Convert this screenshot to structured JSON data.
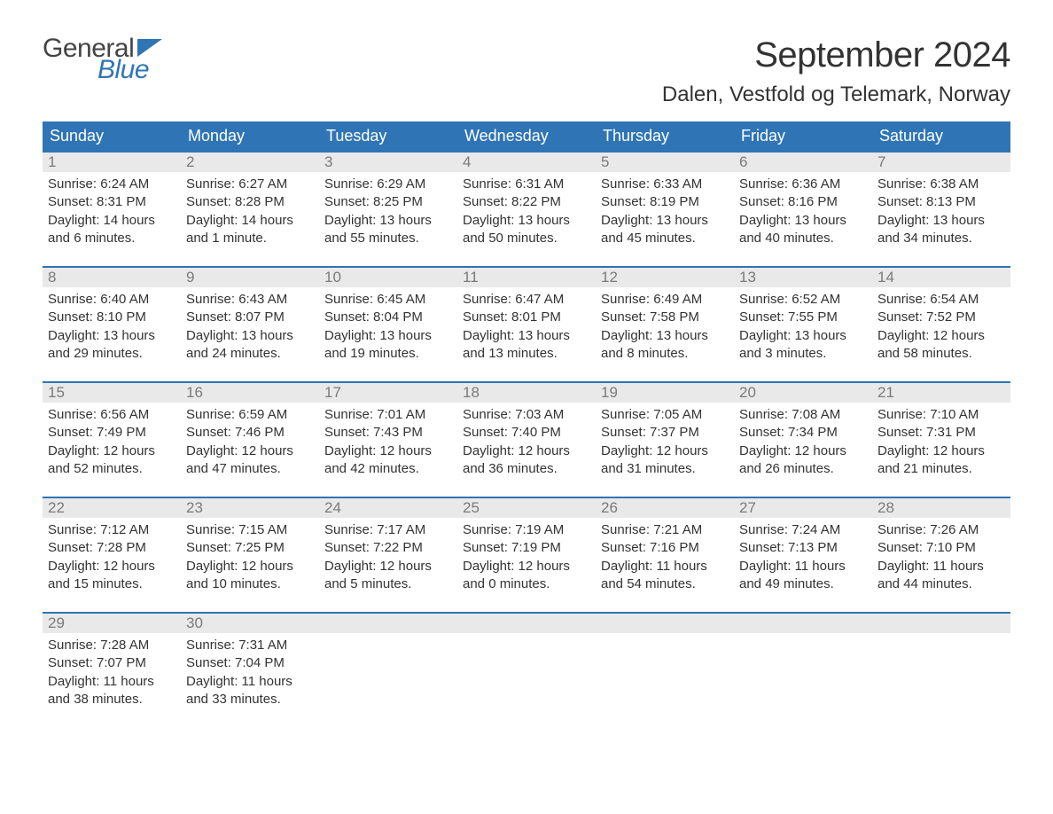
{
  "logo": {
    "text_general": "General",
    "text_blue": "Blue",
    "flag_color": "#2f75b5"
  },
  "title": "September 2024",
  "location": "Dalen, Vestfold og Telemark, Norway",
  "colors": {
    "header_bg": "#2f75b5",
    "header_text": "#ffffff",
    "daynum_bg": "#e9e9e9",
    "daynum_text": "#7a7a7a",
    "body_text": "#333333",
    "background": "#ffffff",
    "week_border": "#2f75b5"
  },
  "typography": {
    "title_fontsize": 40,
    "location_fontsize": 24,
    "dow_fontsize": 18,
    "daynum_fontsize": 17,
    "body_fontsize": 15
  },
  "days_of_week": [
    "Sunday",
    "Monday",
    "Tuesday",
    "Wednesday",
    "Thursday",
    "Friday",
    "Saturday"
  ],
  "weeks": [
    [
      {
        "num": "1",
        "sunrise": "Sunrise: 6:24 AM",
        "sunset": "Sunset: 8:31 PM",
        "daylight": "Daylight: 14 hours and 6 minutes."
      },
      {
        "num": "2",
        "sunrise": "Sunrise: 6:27 AM",
        "sunset": "Sunset: 8:28 PM",
        "daylight": "Daylight: 14 hours and 1 minute."
      },
      {
        "num": "3",
        "sunrise": "Sunrise: 6:29 AM",
        "sunset": "Sunset: 8:25 PM",
        "daylight": "Daylight: 13 hours and 55 minutes."
      },
      {
        "num": "4",
        "sunrise": "Sunrise: 6:31 AM",
        "sunset": "Sunset: 8:22 PM",
        "daylight": "Daylight: 13 hours and 50 minutes."
      },
      {
        "num": "5",
        "sunrise": "Sunrise: 6:33 AM",
        "sunset": "Sunset: 8:19 PM",
        "daylight": "Daylight: 13 hours and 45 minutes."
      },
      {
        "num": "6",
        "sunrise": "Sunrise: 6:36 AM",
        "sunset": "Sunset: 8:16 PM",
        "daylight": "Daylight: 13 hours and 40 minutes."
      },
      {
        "num": "7",
        "sunrise": "Sunrise: 6:38 AM",
        "sunset": "Sunset: 8:13 PM",
        "daylight": "Daylight: 13 hours and 34 minutes."
      }
    ],
    [
      {
        "num": "8",
        "sunrise": "Sunrise: 6:40 AM",
        "sunset": "Sunset: 8:10 PM",
        "daylight": "Daylight: 13 hours and 29 minutes."
      },
      {
        "num": "9",
        "sunrise": "Sunrise: 6:43 AM",
        "sunset": "Sunset: 8:07 PM",
        "daylight": "Daylight: 13 hours and 24 minutes."
      },
      {
        "num": "10",
        "sunrise": "Sunrise: 6:45 AM",
        "sunset": "Sunset: 8:04 PM",
        "daylight": "Daylight: 13 hours and 19 minutes."
      },
      {
        "num": "11",
        "sunrise": "Sunrise: 6:47 AM",
        "sunset": "Sunset: 8:01 PM",
        "daylight": "Daylight: 13 hours and 13 minutes."
      },
      {
        "num": "12",
        "sunrise": "Sunrise: 6:49 AM",
        "sunset": "Sunset: 7:58 PM",
        "daylight": "Daylight: 13 hours and 8 minutes."
      },
      {
        "num": "13",
        "sunrise": "Sunrise: 6:52 AM",
        "sunset": "Sunset: 7:55 PM",
        "daylight": "Daylight: 13 hours and 3 minutes."
      },
      {
        "num": "14",
        "sunrise": "Sunrise: 6:54 AM",
        "sunset": "Sunset: 7:52 PM",
        "daylight": "Daylight: 12 hours and 58 minutes."
      }
    ],
    [
      {
        "num": "15",
        "sunrise": "Sunrise: 6:56 AM",
        "sunset": "Sunset: 7:49 PM",
        "daylight": "Daylight: 12 hours and 52 minutes."
      },
      {
        "num": "16",
        "sunrise": "Sunrise: 6:59 AM",
        "sunset": "Sunset: 7:46 PM",
        "daylight": "Daylight: 12 hours and 47 minutes."
      },
      {
        "num": "17",
        "sunrise": "Sunrise: 7:01 AM",
        "sunset": "Sunset: 7:43 PM",
        "daylight": "Daylight: 12 hours and 42 minutes."
      },
      {
        "num": "18",
        "sunrise": "Sunrise: 7:03 AM",
        "sunset": "Sunset: 7:40 PM",
        "daylight": "Daylight: 12 hours and 36 minutes."
      },
      {
        "num": "19",
        "sunrise": "Sunrise: 7:05 AM",
        "sunset": "Sunset: 7:37 PM",
        "daylight": "Daylight: 12 hours and 31 minutes."
      },
      {
        "num": "20",
        "sunrise": "Sunrise: 7:08 AM",
        "sunset": "Sunset: 7:34 PM",
        "daylight": "Daylight: 12 hours and 26 minutes."
      },
      {
        "num": "21",
        "sunrise": "Sunrise: 7:10 AM",
        "sunset": "Sunset: 7:31 PM",
        "daylight": "Daylight: 12 hours and 21 minutes."
      }
    ],
    [
      {
        "num": "22",
        "sunrise": "Sunrise: 7:12 AM",
        "sunset": "Sunset: 7:28 PM",
        "daylight": "Daylight: 12 hours and 15 minutes."
      },
      {
        "num": "23",
        "sunrise": "Sunrise: 7:15 AM",
        "sunset": "Sunset: 7:25 PM",
        "daylight": "Daylight: 12 hours and 10 minutes."
      },
      {
        "num": "24",
        "sunrise": "Sunrise: 7:17 AM",
        "sunset": "Sunset: 7:22 PM",
        "daylight": "Daylight: 12 hours and 5 minutes."
      },
      {
        "num": "25",
        "sunrise": "Sunrise: 7:19 AM",
        "sunset": "Sunset: 7:19 PM",
        "daylight": "Daylight: 12 hours and 0 minutes."
      },
      {
        "num": "26",
        "sunrise": "Sunrise: 7:21 AM",
        "sunset": "Sunset: 7:16 PM",
        "daylight": "Daylight: 11 hours and 54 minutes."
      },
      {
        "num": "27",
        "sunrise": "Sunrise: 7:24 AM",
        "sunset": "Sunset: 7:13 PM",
        "daylight": "Daylight: 11 hours and 49 minutes."
      },
      {
        "num": "28",
        "sunrise": "Sunrise: 7:26 AM",
        "sunset": "Sunset: 7:10 PM",
        "daylight": "Daylight: 11 hours and 44 minutes."
      }
    ],
    [
      {
        "num": "29",
        "sunrise": "Sunrise: 7:28 AM",
        "sunset": "Sunset: 7:07 PM",
        "daylight": "Daylight: 11 hours and 38 minutes."
      },
      {
        "num": "30",
        "sunrise": "Sunrise: 7:31 AM",
        "sunset": "Sunset: 7:04 PM",
        "daylight": "Daylight: 11 hours and 33 minutes."
      },
      {
        "empty": true
      },
      {
        "empty": true
      },
      {
        "empty": true
      },
      {
        "empty": true
      },
      {
        "empty": true
      }
    ]
  ]
}
